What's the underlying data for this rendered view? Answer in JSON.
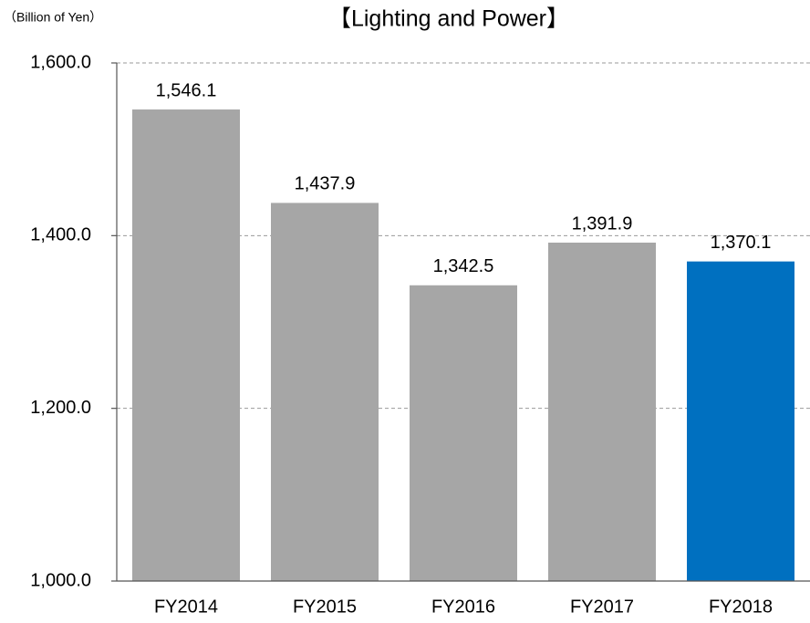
{
  "chart_data": {
    "type": "bar",
    "title": "【Lighting and Power】",
    "y_axis_label": "（Billion of Yen）",
    "categories": [
      "FY2014",
      "FY2015",
      "FY2016",
      "FY2017",
      "FY2018"
    ],
    "values": [
      1546.1,
      1437.9,
      1342.5,
      1391.9,
      1370.1
    ],
    "value_labels": [
      "1,546.1",
      "1,437.9",
      "1,342.5",
      "1,391.9",
      "1,370.1"
    ],
    "colors": [
      "#a6a6a6",
      "#a6a6a6",
      "#a6a6a6",
      "#a6a6a6",
      "#0070c0"
    ],
    "ylim": [
      1000,
      1600
    ],
    "yticks": [
      {
        "value": 1000,
        "label": "1,000.0"
      },
      {
        "value": 1200,
        "label": "1,200.0"
      },
      {
        "value": 1400,
        "label": "1,400.0"
      },
      {
        "value": 1600,
        "label": "1,600.0"
      }
    ],
    "grid": true
  }
}
